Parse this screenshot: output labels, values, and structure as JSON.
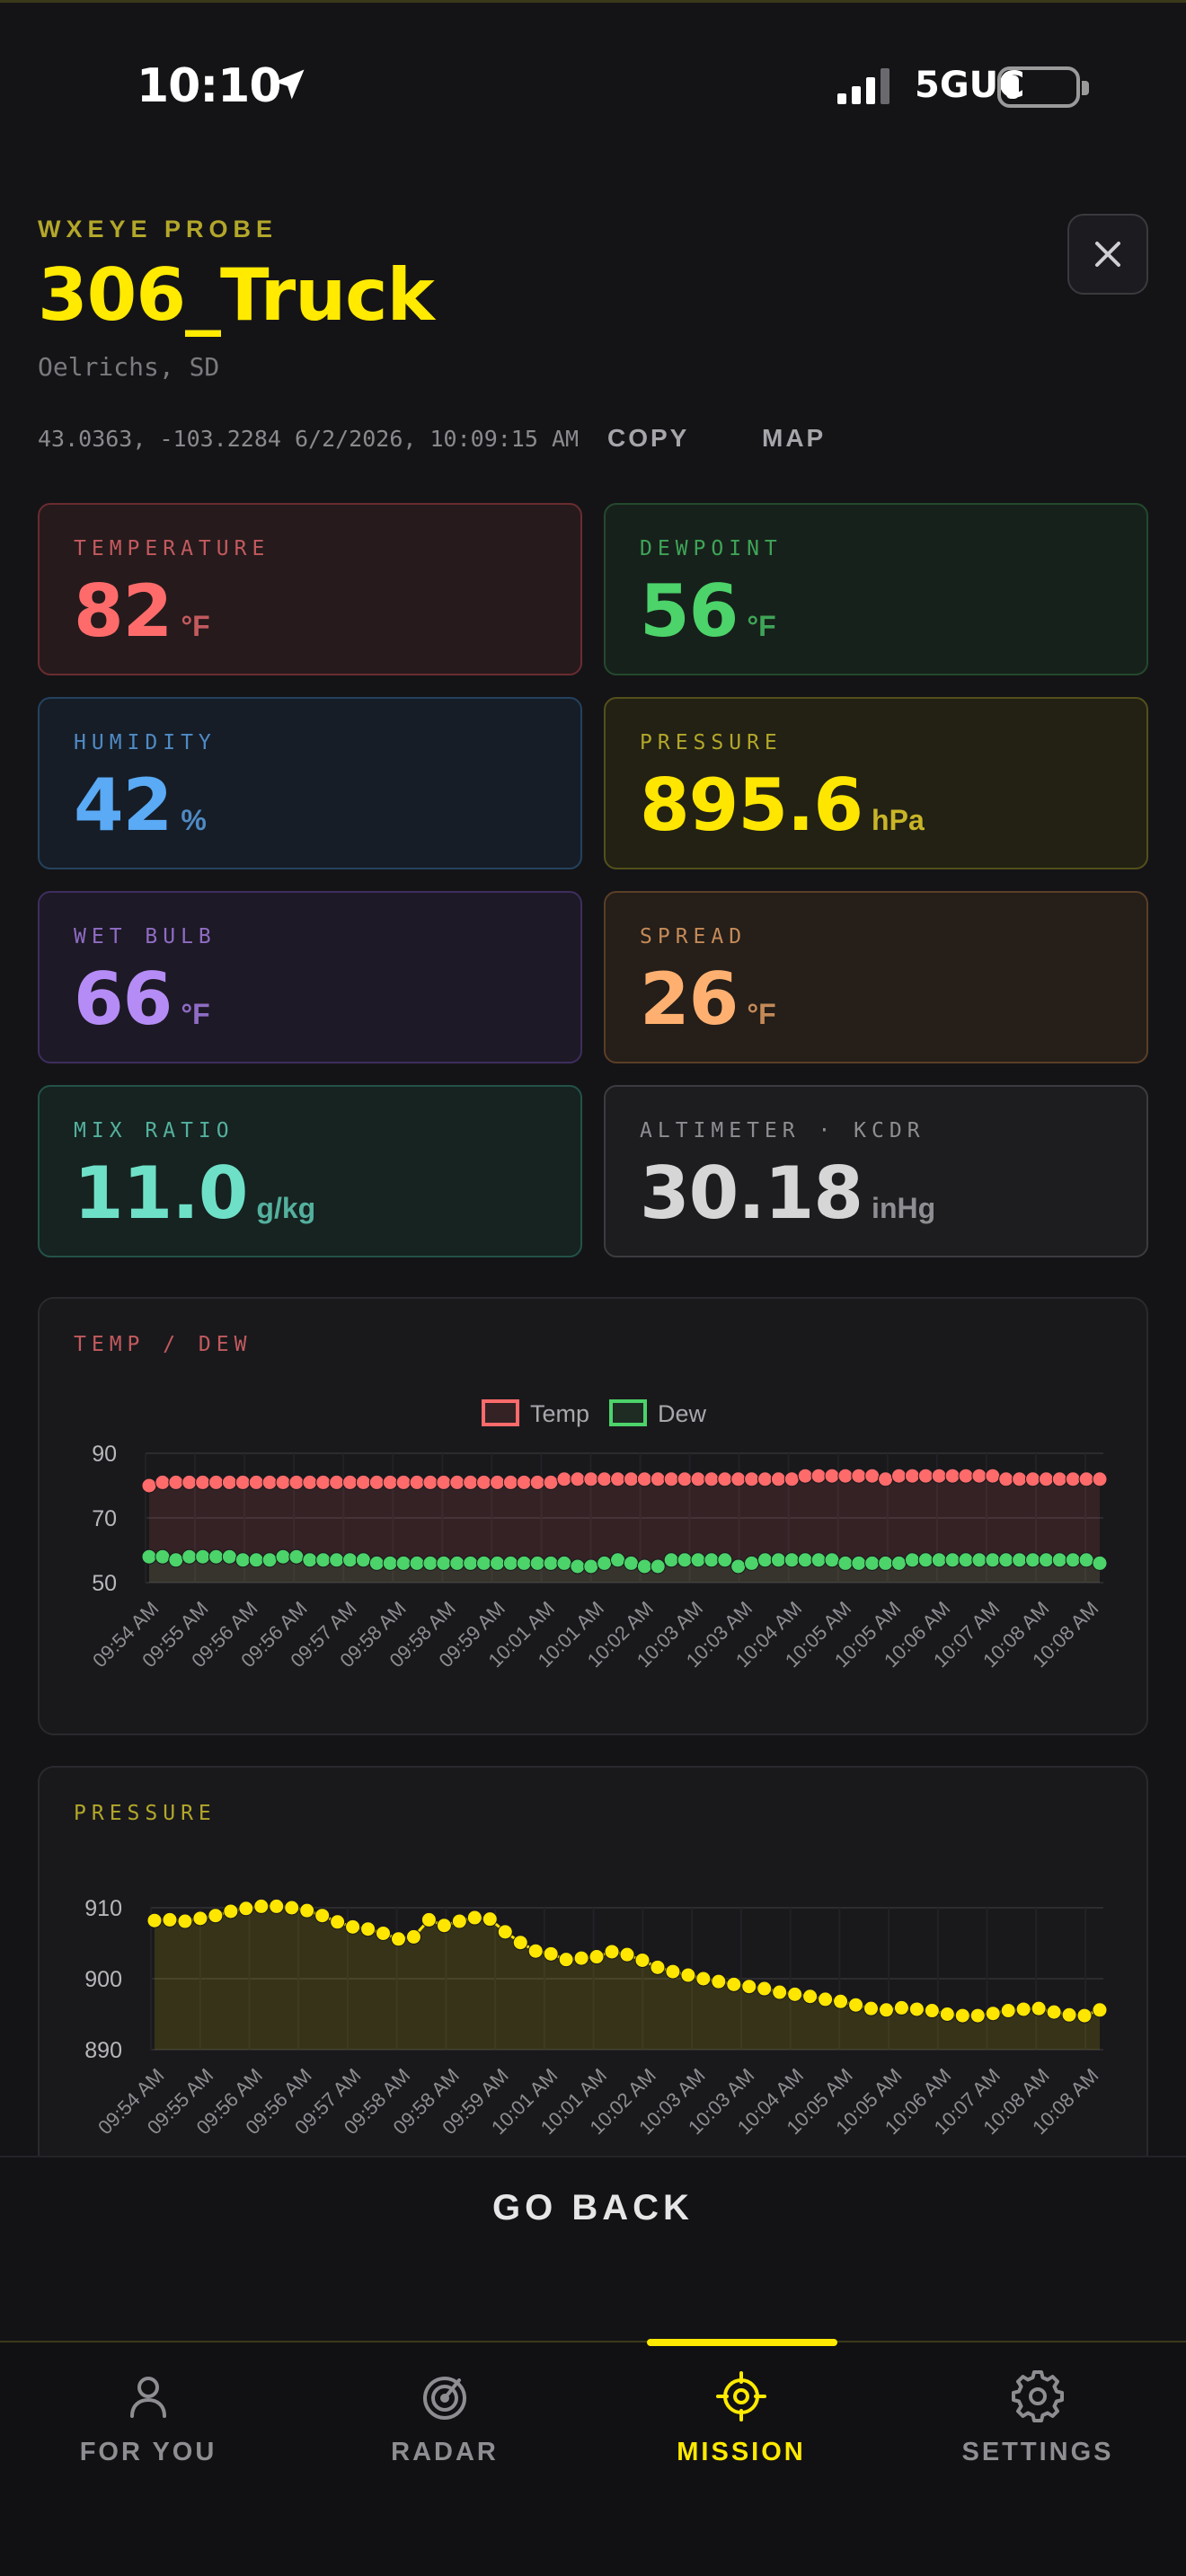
{
  "status_bar": {
    "time": "10:10",
    "network": "5GUC"
  },
  "header": {
    "eyebrow": "WXEYE PROBE",
    "title": "306_Truck",
    "location": "Oelrichs, SD",
    "coords_time": "43.0363, -103.2284 6/2/2026, 10:09:15 AM",
    "copy_label": "COPY",
    "map_label": "MAP"
  },
  "stats": [
    {
      "label": "TEMPERATURE",
      "value": "82",
      "unit": "°F"
    },
    {
      "label": "DEWPOINT",
      "value": "56",
      "unit": "°F"
    },
    {
      "label": "HUMIDITY",
      "value": "42",
      "unit": "%"
    },
    {
      "label": "PRESSURE",
      "value": "895.6",
      "unit": "hPa"
    },
    {
      "label": "WET BULB",
      "value": "66",
      "unit": "°F"
    },
    {
      "label": "SPREAD",
      "value": "26",
      "unit": "°F"
    },
    {
      "label": "MIX RATIO",
      "value": "11.0",
      "unit": "g/kg"
    },
    {
      "label": "ALTIMETER · KCDR",
      "value": "30.18",
      "unit": "inHg"
    }
  ],
  "colors": {
    "temp": "#ff6b6b",
    "dew": "#4cd36a",
    "humidity": "#5aaaf5",
    "pressure": "#ffe600",
    "wetbulb": "#b58cf5",
    "spread": "#ffb070",
    "mix": "#6fe0c8",
    "altimeter": "#d6d6d6"
  },
  "chart_data": [
    {
      "type": "line",
      "title": "TEMP / DEW",
      "legend_position": "top-center",
      "grid": true,
      "ylim": [
        50,
        90
      ],
      "yticks": [
        90,
        70,
        50
      ],
      "xtick_labels": [
        "09:54 AM",
        "09:55 AM",
        "09:56 AM",
        "09:56 AM",
        "09:57 AM",
        "09:58 AM",
        "09:58 AM",
        "09:59 AM",
        "10:01 AM",
        "10:01 AM",
        "10:02 AM",
        "10:03 AM",
        "10:03 AM",
        "10:04 AM",
        "10:05 AM",
        "10:05 AM",
        "10:06 AM",
        "10:07 AM",
        "10:08 AM",
        "10:08 AM"
      ],
      "series": [
        {
          "name": "Temp",
          "values": [
            80,
            81,
            81,
            81,
            81,
            81,
            81,
            81,
            81,
            81,
            81,
            81,
            81,
            81,
            81,
            81,
            81,
            81,
            81,
            81,
            81,
            81,
            81,
            81,
            81,
            81,
            81,
            81,
            81,
            81,
            81,
            82,
            82,
            82,
            82,
            82,
            82,
            82,
            82,
            82,
            82,
            82,
            82,
            82,
            82,
            82,
            82,
            82,
            82,
            83,
            83,
            83,
            83,
            83,
            83,
            82,
            83,
            83,
            83,
            83,
            83,
            83,
            83,
            83,
            82,
            82,
            82,
            82,
            82,
            82,
            82,
            82
          ]
        },
        {
          "name": "Dew",
          "values": [
            58,
            58,
            57,
            58,
            58,
            58,
            58,
            57,
            57,
            57,
            58,
            58,
            57,
            57,
            57,
            57,
            57,
            56,
            56,
            56,
            56,
            56,
            56,
            56,
            56,
            56,
            56,
            56,
            56,
            56,
            56,
            56,
            55,
            55,
            56,
            57,
            56,
            55,
            55,
            57,
            57,
            57,
            57,
            57,
            55,
            56,
            57,
            57,
            57,
            57,
            57,
            57,
            56,
            56,
            56,
            56,
            56,
            57,
            57,
            57,
            57,
            57,
            57,
            57,
            57,
            57,
            57,
            57,
            57,
            57,
            57,
            56
          ]
        }
      ]
    },
    {
      "type": "area",
      "title": "PRESSURE",
      "grid": true,
      "ylim": [
        890,
        910
      ],
      "yticks": [
        910,
        900,
        890
      ],
      "xtick_labels": [
        "09:54 AM",
        "09:55 AM",
        "09:56 AM",
        "09:56 AM",
        "09:57 AM",
        "09:58 AM",
        "09:58 AM",
        "09:59 AM",
        "10:01 AM",
        "10:01 AM",
        "10:02 AM",
        "10:03 AM",
        "10:03 AM",
        "10:04 AM",
        "10:05 AM",
        "10:05 AM",
        "10:06 AM",
        "10:07 AM",
        "10:08 AM",
        "10:08 AM"
      ],
      "series": [
        {
          "name": "",
          "values": [
            908.2,
            908.3,
            908.1,
            908.5,
            908.9,
            909.5,
            909.9,
            910.2,
            910.2,
            910.0,
            909.6,
            908.9,
            908.0,
            907.3,
            907.0,
            906.4,
            905.6,
            905.9,
            908.3,
            907.5,
            908.1,
            908.6,
            908.4,
            906.6,
            905.1,
            903.9,
            903.5,
            902.7,
            902.9,
            903.1,
            903.8,
            903.4,
            902.6,
            901.6,
            901.0,
            900.5,
            900.0,
            899.6,
            899.2,
            898.9,
            898.6,
            898.1,
            897.8,
            897.5,
            897.1,
            896.8,
            896.3,
            895.8,
            895.6,
            895.9,
            895.7,
            895.5,
            895.0,
            894.8,
            894.8,
            895.1,
            895.5,
            895.7,
            895.8,
            895.3,
            894.9,
            894.8,
            895.6
          ]
        }
      ]
    }
  ],
  "actions": {
    "go_back": "GO BACK"
  },
  "tabs": [
    {
      "label": "FOR YOU",
      "icon": "person-icon"
    },
    {
      "label": "RADAR",
      "icon": "radar-icon"
    },
    {
      "label": "MISSION",
      "icon": "crosshair-icon"
    },
    {
      "label": "SETTINGS",
      "icon": "gear-icon"
    }
  ]
}
